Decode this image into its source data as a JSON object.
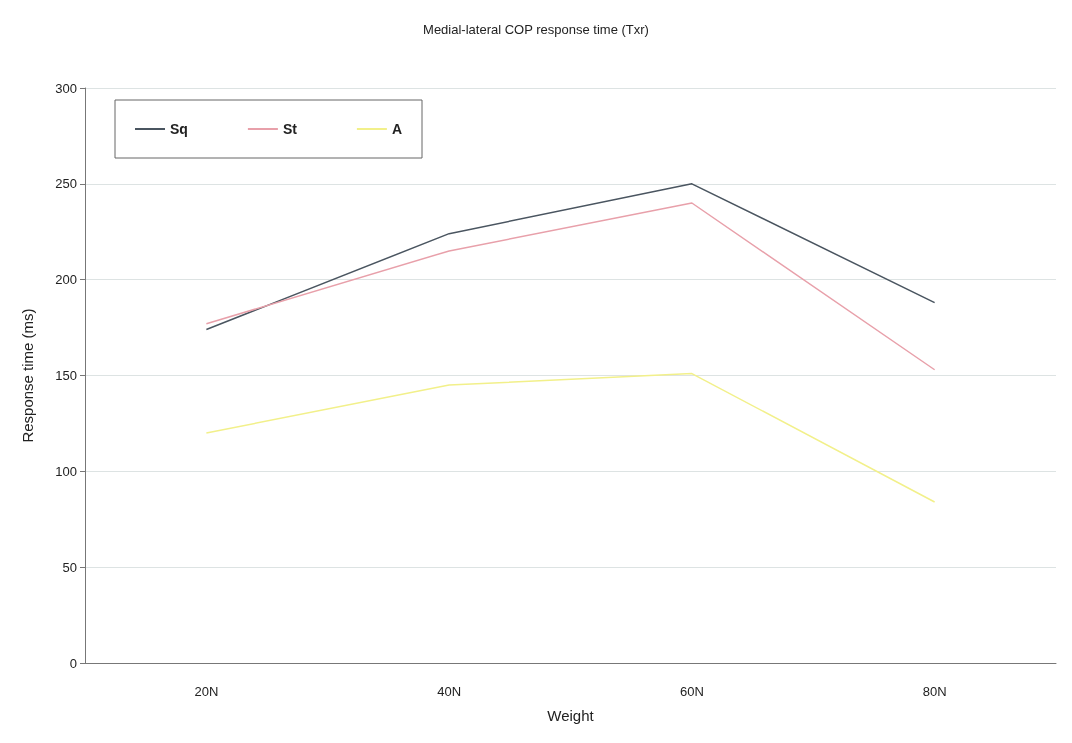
{
  "chart_data": {
    "type": "line",
    "title": "Medial-lateral COP response time (Txr)",
    "xlabel": "Weight",
    "ylabel": "Response time (ms)",
    "categories": [
      "20N",
      "40N",
      "60N",
      "80N"
    ],
    "series": [
      {
        "name": "Sq",
        "color": "#4a5560",
        "values": [
          174,
          224,
          250,
          188
        ]
      },
      {
        "name": "St",
        "color": "#e8a0aa",
        "values": [
          177,
          215,
          240,
          153
        ]
      },
      {
        "name": "A",
        "color": "#f2f08a",
        "values": [
          120,
          145,
          151,
          84
        ]
      }
    ],
    "ylim": [
      0,
      300
    ],
    "yticks": [
      0,
      50,
      100,
      150,
      200,
      250,
      300
    ],
    "grid": "y",
    "legend": "top left",
    "marker": "none",
    "line_style": "solid"
  }
}
